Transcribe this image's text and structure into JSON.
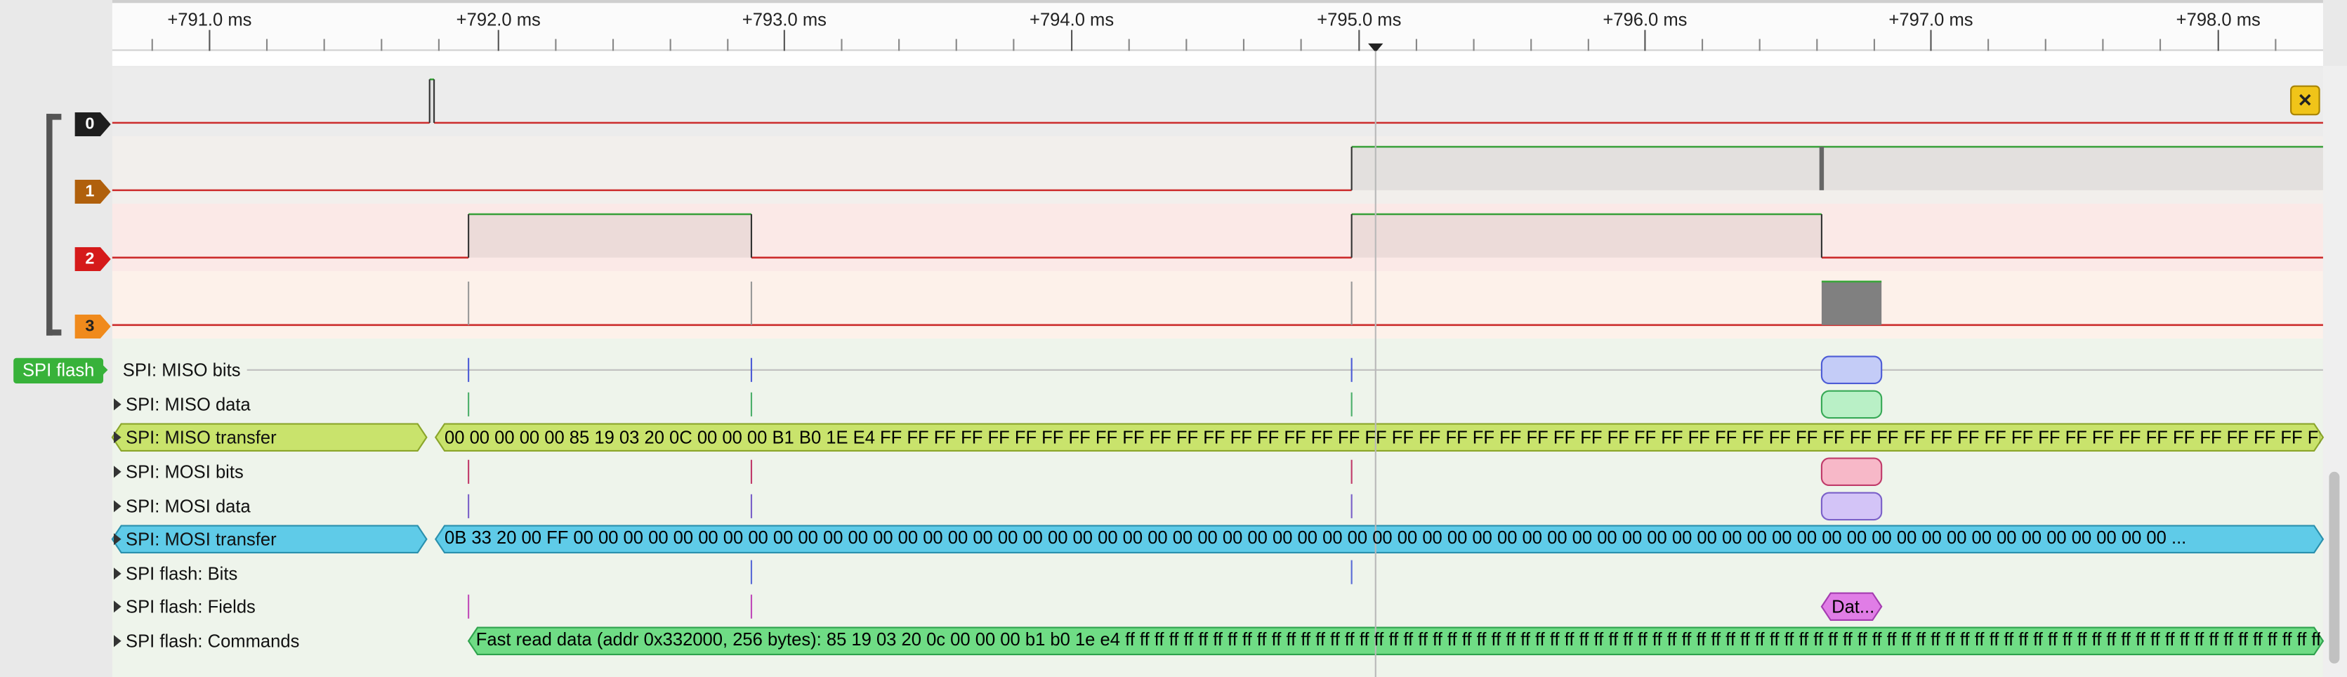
{
  "ruler": {
    "ticks": [
      "+791.0 ms",
      "+792.0 ms",
      "+793.0 ms",
      "+794.0 ms",
      "+795.0 ms",
      "+796.0 ms",
      "+797.0 ms",
      "+798.0 ms"
    ],
    "cursor_label": "+795.0 ms"
  },
  "channels": [
    {
      "id": "0",
      "color": "#1e1e1e",
      "text_color": "#ffffff"
    },
    {
      "id": "1",
      "color": "#b0600c",
      "text_color": "#ffffff"
    },
    {
      "id": "2",
      "color": "#d51a1a",
      "text_color": "#ffffff"
    },
    {
      "id": "3",
      "color": "#f08a1c",
      "text_color": "#222222"
    }
  ],
  "decoder_group": {
    "name": "SPI flash",
    "color": "#38b23a"
  },
  "rows": [
    {
      "label": "SPI: MISO bits",
      "expandable": false
    },
    {
      "label": "SPI: MISO data",
      "expandable": true
    },
    {
      "label": "SPI: MISO transfer",
      "expandable": true,
      "highlight": "#c9e36c"
    },
    {
      "label": "SPI: MOSI bits",
      "expandable": true
    },
    {
      "label": "SPI: MOSI data",
      "expandable": true
    },
    {
      "label": "SPI: MOSI transfer",
      "expandable": true,
      "highlight": "#5fcbe8"
    },
    {
      "label": "SPI flash: Bits",
      "expandable": true
    },
    {
      "label": "SPI flash: Fields",
      "expandable": true
    },
    {
      "label": "SPI flash: Commands",
      "expandable": true
    }
  ],
  "annotations": {
    "miso_transfer": "00 00 00 00 00 85 19 03 20 0C 00 00 00 B1 B0 1E E4 FF FF FF FF FF FF FF FF FF FF FF FF FF FF FF FF FF FF FF FF FF FF FF FF FF FF FF FF FF FF FF FF FF FF FF FF FF FF FF FF FF FF FF FF FF FF FF FF FF FF FF FF FF FF FF FF FF FF F...",
    "mosi_transfer": "0B 33 20 00 FF 00 00 00 00 00 00 00 00 00 00 00 00 00 00 00 00 00 00 00 00 00 00 00 00 00 00 00 00 00 00 00 00 00 00 00 00 00 00 00 00 00 00 00 00 00 00 00 00 00 00 00 00 00 00 00 00 00 00 00 00 00 00 00 00 ...",
    "flash_field": "Dat...",
    "flash_command": "Fast read data (addr 0x332000, 256 bytes): 85 19 03 20 0c 00 00 00 b1 b0 1e e4 ff ff ff ff ff ff ff ff ff ff ff ff ff ff ff ff ff ff ff ff ff ff ff ff ff ff ff ff ff ff ff ff ff ff ff ff ff ff ff ff ff ff ff ff ff ff ff ff ff ff ff ff ff ff ff ff ff ff ff ff ff ff ff ff ff ff ff ff ff ff ff ff ff ff ff ff ff ff ff ff ff ff ff ff ff ff ff ff ff ff ff ff ff ff ff ff ff ff ff ff ff ff ff ff ff ff ff ff ff ff ff ff ff ff ff ff ff ff ff ff ff ff ff ff ff ff ff ff ff ff ff ff ff ff ff ff ff ff ff ff ff ff ff ff ff ff ff ff ff ff ff ff..."
  },
  "icons": {
    "close": "close-x-icon",
    "expand": "triangle-right-icon"
  },
  "colors": {
    "trace_low": "#cc2b2b",
    "trace_high": "#3aa53a"
  }
}
